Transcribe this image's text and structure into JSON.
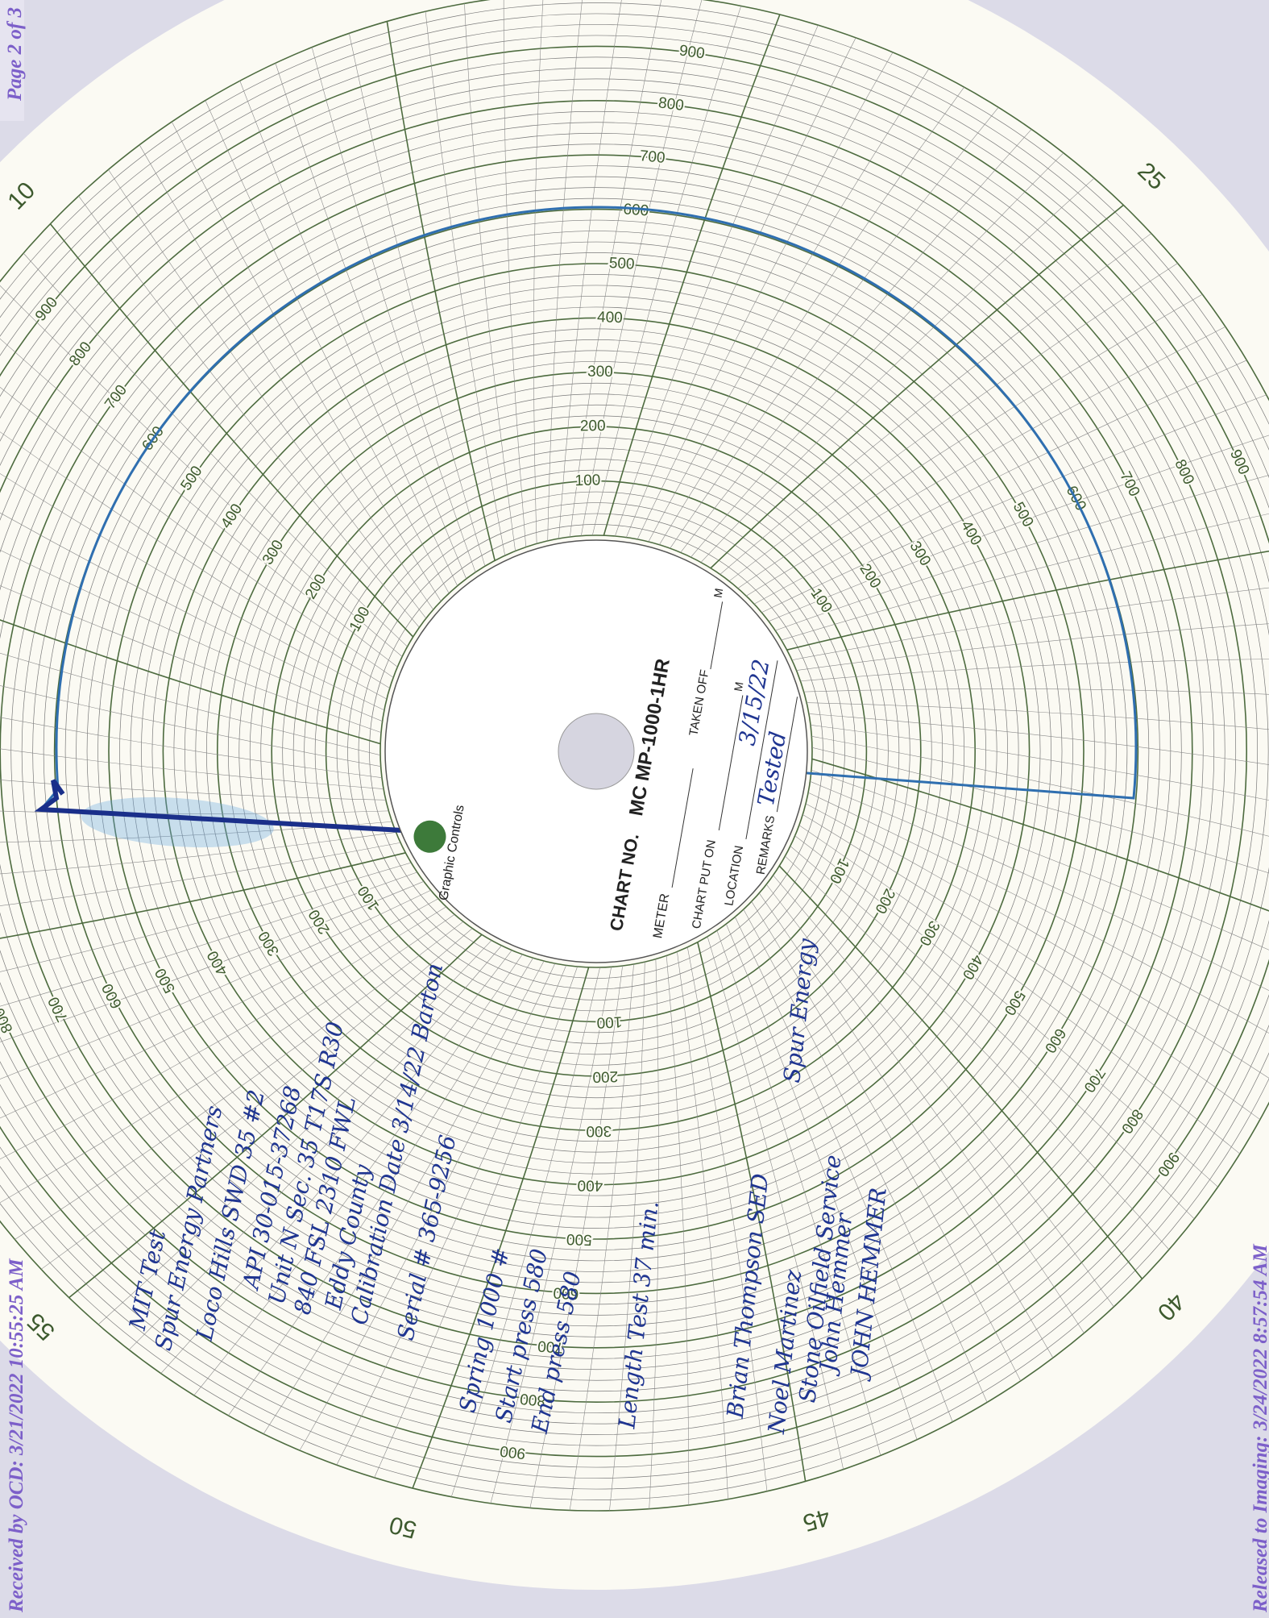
{
  "stamps": {
    "page": "Page 2 of 3",
    "received": "Received by OCD: 3/21/2022 10:55:25 AM",
    "released": "Released to Imaging: 3/24/2022 8:57:54 AM"
  },
  "chart_card": {
    "brand": "Graphic Controls",
    "chart_no_label": "CHART NO.",
    "chart_no": "MC MP-1000-1HR",
    "meter": "METER",
    "taken_off": "TAKEN OFF",
    "put_on": "CHART PUT ON",
    "location": "LOCATION",
    "remarks": "REMARKS",
    "m": "M",
    "remarks_handwritten": "Tested",
    "date_handwritten": "3/15/22"
  },
  "time_labels": [
    "10",
    "25",
    "40",
    "45",
    "50",
    "55"
  ],
  "pressure_labels": [
    "100",
    "200",
    "300",
    "400",
    "500",
    "600",
    "700",
    "800",
    "900"
  ],
  "notes": [
    "MIT Test",
    "Spur Energy Partners",
    "Loco Hills SWD 35 #2",
    "API 30-015-37268",
    "Unit N Sec. 35 T17S R30",
    "840 FSL 2310 FWL",
    "Eddy County",
    "Calibration Date 3/14/22 Barton",
    "Serial # 365-9256",
    "Spring 1000 #",
    "Start press 580",
    "End press 580",
    "Length Test 37 min.",
    "Brian Thompson SED",
    "Noel Martinez",
    "Stone Oilfield Service",
    "Spur Energy",
    "John Hemmer",
    "JOHN HEMMER"
  ]
}
